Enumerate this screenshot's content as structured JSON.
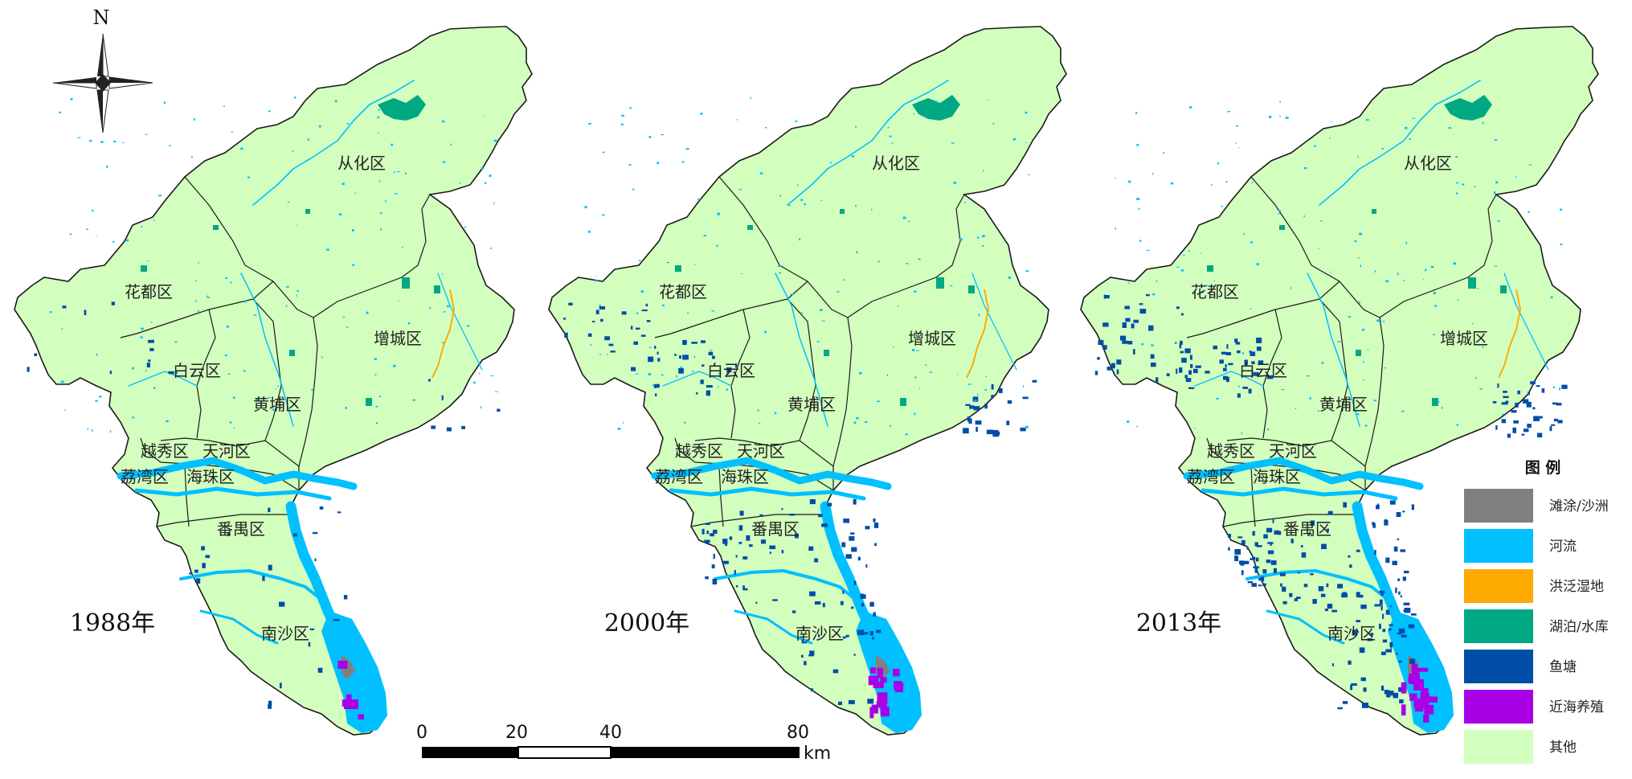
{
  "north_arrow": {
    "label": "N"
  },
  "maps": [
    {
      "year_label": "1988年",
      "districts": [
        "从化区",
        "花都区",
        "增城区",
        "白云区",
        "黄埔区",
        "越秀区",
        "天河区",
        "荔湾区",
        "海珠区",
        "番禺区",
        "南沙区"
      ],
      "fishpond_density": 0.15,
      "aquaculture_extent": 0.3
    },
    {
      "year_label": "2000年",
      "districts": [
        "从化区",
        "花都区",
        "增城区",
        "白云区",
        "黄埔区",
        "越秀区",
        "天河区",
        "荔湾区",
        "海珠区",
        "番禺区",
        "南沙区"
      ],
      "fishpond_density": 0.55,
      "aquaculture_extent": 0.8
    },
    {
      "year_label": "2013年",
      "districts": [
        "从化区",
        "花都区",
        "增城区",
        "白云区",
        "黄埔区",
        "越秀区",
        "天河区",
        "荔湾区",
        "海珠区",
        "番禺区",
        "南沙区"
      ],
      "fishpond_density": 0.9,
      "aquaculture_extent": 1.0
    }
  ],
  "scale_bar": {
    "ticks": [
      "0",
      "20",
      "40",
      "80"
    ],
    "unit": "km"
  },
  "legend": {
    "title": "图 例",
    "items": [
      {
        "label": "滩涂/沙洲",
        "color": "#808080"
      },
      {
        "label": "河流",
        "color": "#00C0FF"
      },
      {
        "label": "洪泛湿地",
        "color": "#FFAA00"
      },
      {
        "label": "湖泊/水库",
        "color": "#00A884"
      },
      {
        "label": "鱼塘",
        "color": "#004DA8"
      },
      {
        "label": "近海养殖",
        "color": "#A900E6"
      },
      {
        "label": "其他",
        "color": "#D3FFBE"
      }
    ]
  }
}
